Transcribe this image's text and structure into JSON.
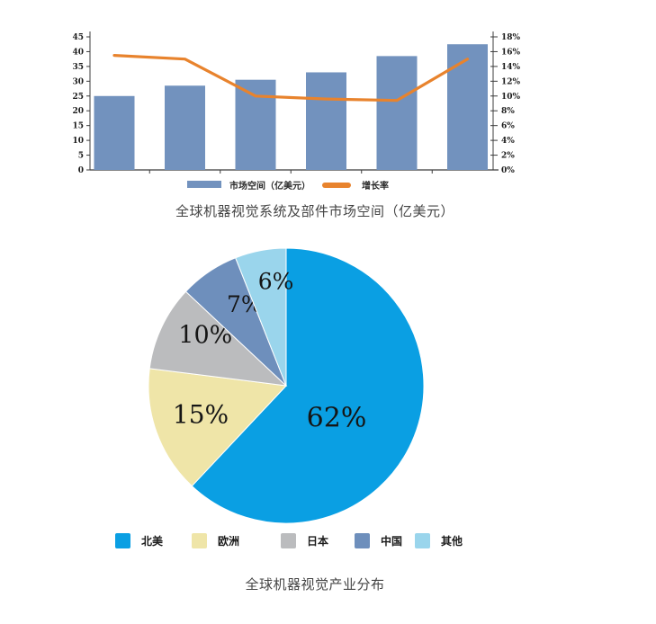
{
  "combo_chart": {
    "caption": "全球机器视觉系统及部件市场空间（亿美元）",
    "left_axis": {
      "min": 0,
      "max": 45,
      "step": 5,
      "ticks": [
        "0",
        "5",
        "10",
        "15",
        "20",
        "25",
        "30",
        "35",
        "40",
        "45"
      ]
    },
    "right_axis": {
      "min": 0,
      "max": 18,
      "step": 2,
      "ticks": [
        "0%",
        "2%",
        "4%",
        "6%",
        "8%",
        "10%",
        "12%",
        "14%",
        "16%",
        "18%"
      ]
    },
    "bar_color": "#7292BE",
    "line_color": "#E8832D",
    "legend": [
      {
        "label": "市场空间（亿美元）",
        "type": "bar",
        "color": "#7292BE"
      },
      {
        "label": "增长率",
        "type": "line",
        "color": "#E8832D"
      }
    ]
  },
  "pie_chart": {
    "caption": "全球机器视觉产业分布"
  },
  "chart_data": [
    {
      "type": "bar",
      "title": "全球机器视觉系统及部件市场空间（亿美元）",
      "categories": [
        "",
        "",
        "",
        "",
        "",
        ""
      ],
      "series": [
        {
          "name": "市场空间（亿美元）",
          "type": "bar",
          "axis": "left",
          "color": "#7292BE",
          "values": [
            25,
            28.5,
            30.5,
            33,
            38.5,
            42.5
          ]
        },
        {
          "name": "增长率",
          "type": "line",
          "axis": "right",
          "unit": "%",
          "color": "#E8832D",
          "values": [
            15.5,
            15,
            10,
            9.6,
            9.4,
            15
          ]
        }
      ],
      "xlabel": "",
      "ylabel_left": "亿美元",
      "ylabel_right": "%",
      "ylim_left": [
        0,
        45
      ],
      "ylim_right": [
        0,
        18
      ],
      "grid": false,
      "legend_position": "bottom"
    },
    {
      "type": "pie",
      "title": "全球机器视觉产业分布",
      "start_angle": "12-oclock",
      "direction": "clockwise",
      "slices": [
        {
          "label": "北美",
          "value": 62,
          "display": "62%",
          "color": "#0A9FE3"
        },
        {
          "label": "欧洲",
          "value": 15,
          "display": "15%",
          "color": "#EFE5A8"
        },
        {
          "label": "日本",
          "value": 10,
          "display": "10%",
          "color": "#BBBCBE"
        },
        {
          "label": "中国",
          "value": 7,
          "display": "7%",
          "color": "#6E8FBC"
        },
        {
          "label": "其他",
          "value": 6,
          "display": "6%",
          "color": "#9AD5EC"
        }
      ],
      "legend_position": "bottom"
    }
  ]
}
